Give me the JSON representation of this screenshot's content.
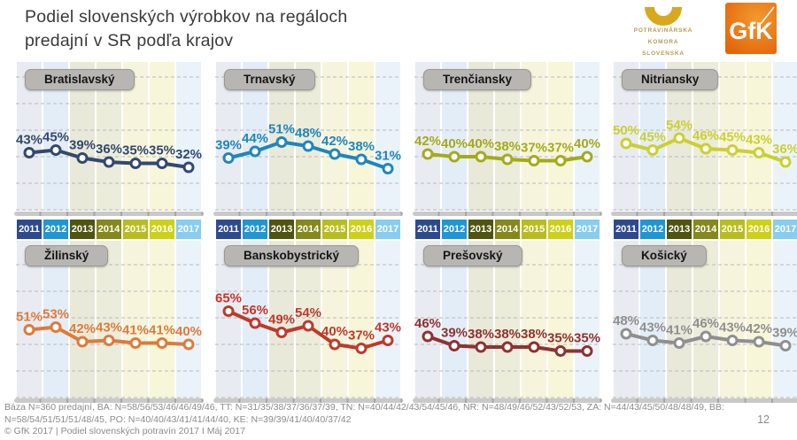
{
  "title": {
    "line1": "Podiel slovenských výrobkov na regáloch",
    "line2": "predajní v SR podľa krajov"
  },
  "logos": {
    "pks": {
      "line1": "POTRAVINÁRSKA",
      "line2": "KOMORA",
      "line3": "SLOVENSKA",
      "arc_color": "#d8a81e",
      "text_color": "#b49a52"
    },
    "gfk": {
      "label": "GfK",
      "bg_inner": "#f29a30",
      "bg_outer": "#e4650a"
    }
  },
  "year_band": [
    {
      "label": "2011",
      "color": "#2e4a8f"
    },
    {
      "label": "2012",
      "color": "#1f97d4"
    },
    {
      "label": "2013",
      "color": "#50540f"
    },
    {
      "label": "2014",
      "color": "#84891a"
    },
    {
      "label": "2015",
      "color": "#b8bd1f"
    },
    {
      "label": "2016",
      "color": "#ccd118"
    },
    {
      "label": "2017",
      "color": "#87cdf0"
    }
  ],
  "stripe_colors": [
    "#e9ebf2",
    "#e3edf7",
    "#e9e9da",
    "#ebecda",
    "#f6f4dc",
    "#f8f6d9",
    "#ebf3fa"
  ],
  "colors": {
    "grid": "#b9b9b9",
    "axis_bar": "#c9c9c9",
    "label_bg": "#b8b6b3",
    "title_text": "#3a3a3a",
    "footer_text": "#8a8a8a"
  },
  "chart_data": {
    "type": "line",
    "unit": "%",
    "x": [
      "2011",
      "2012",
      "2013",
      "2014",
      "2015",
      "2016",
      "2017"
    ],
    "ylim": [
      0,
      110
    ],
    "grid": "horizontal-dashed",
    "layout": "small-multiples 4x2",
    "series": [
      {
        "id": "bratislavsky",
        "name": "Bratislavský",
        "color": "#32496e",
        "values": [
          43,
          45,
          39,
          36,
          35,
          35,
          32
        ]
      },
      {
        "id": "trnavsky",
        "name": "Trnavský",
        "color": "#1f86bd",
        "values": [
          39,
          44,
          51,
          48,
          42,
          38,
          31
        ]
      },
      {
        "id": "trenciansky",
        "name": "Trenčiansky",
        "color": "#a4aa1c",
        "values": [
          42,
          40,
          40,
          38,
          37,
          37,
          40
        ]
      },
      {
        "id": "nitriansky",
        "name": "Nitriansky",
        "color": "#cbd02f",
        "values": [
          50,
          45,
          54,
          46,
          45,
          43,
          36
        ]
      },
      {
        "id": "zilinsky",
        "name": "Žilinský",
        "color": "#dd7b3a",
        "values": [
          51,
          53,
          42,
          43,
          41,
          41,
          40
        ]
      },
      {
        "id": "banskobystricky",
        "name": "Banskobystrický",
        "color": "#bf392c",
        "values": [
          65,
          56,
          49,
          54,
          40,
          37,
          43
        ]
      },
      {
        "id": "presovsky",
        "name": "Prešovský",
        "color": "#8e3231",
        "values": [
          46,
          39,
          38,
          38,
          38,
          35,
          35
        ]
      },
      {
        "id": "kosicky",
        "name": "Košický",
        "color": "#8f8f8f",
        "values": [
          48,
          43,
          41,
          46,
          43,
          42,
          39
        ]
      }
    ]
  },
  "footer": {
    "line1": "Báza N=360 predajní, BA: N=58/56/53/46/46/49/46, TT: N=31/35/38/37/36/37/39, TN: N=40/44/42/43/54/45/46, NR: N=48/49/46/52/43/52/53, ZA: N=44/43/45/50/48/48/49, BB:",
    "line2": "N=58/54/51/51/51/48/45, PO: N=40/40/43/41/41/44/40, KE: N=39/39/41/40/40/37/42",
    "line3": "© GfK 2017 | Podiel slovenských potravín 2017 I Máj 2017",
    "page": "12"
  }
}
